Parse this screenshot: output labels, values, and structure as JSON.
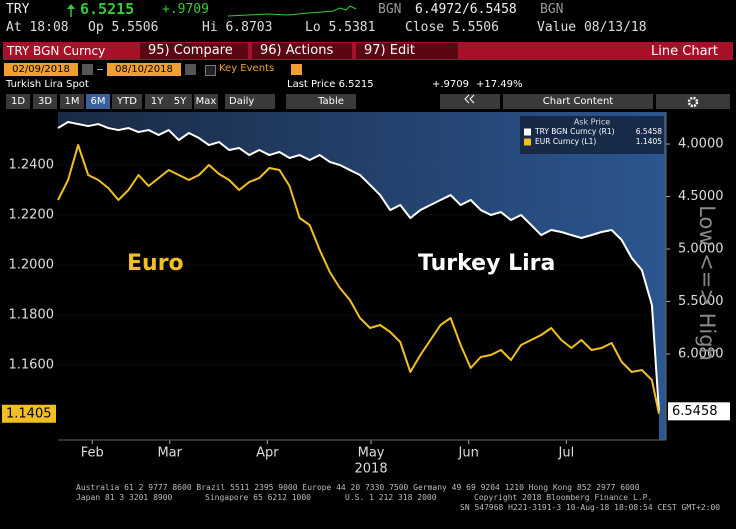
{
  "header": {
    "ticker": "TRY",
    "last": "6.5215",
    "change": "+.9709",
    "currency": "BGN",
    "bid_ask": "6.4972/6.5458",
    "currency2": "BGN"
  },
  "quote": [
    "At 18:08",
    "Op 5.5506",
    "Hi 6.8703",
    "Lo 5.5381",
    "Close 5.5506",
    "Value 08/13/18"
  ],
  "toolbar": {
    "security": "TRY BGN Curncy",
    "buttons": [
      "95) Compare",
      "96) Actions",
      "97) Edit"
    ],
    "view": "Line Chart"
  },
  "dates": {
    "start": "02/09/2018",
    "end": "08/10/2018",
    "key_events": "Key Events"
  },
  "info": {
    "name": "Turkish Lira Spot",
    "last_price": "Last Price 6.5215",
    "change": "+.9709",
    "change_pct": "+17.49%"
  },
  "periods": [
    "1D",
    "3D",
    "1M",
    "6M",
    "YTD",
    "1Y",
    "5Y",
    "Max"
  ],
  "frequency": "Daily",
  "table": "Table",
  "chart_content": "Chart Content",
  "chart_data": {
    "type": "line",
    "x": [
      2.26,
      2.36,
      2.46,
      2.56,
      2.66,
      2.76,
      2.86,
      2.96,
      3.06,
      3.16,
      3.26,
      3.36,
      3.46,
      3.56,
      3.66,
      3.76,
      3.86,
      3.96,
      4.06,
      4.16,
      4.26,
      4.36,
      4.46,
      4.56,
      4.66,
      4.76,
      4.86,
      4.96,
      5.06,
      5.16,
      5.26,
      5.36,
      5.46,
      5.56,
      5.66,
      5.76,
      5.86,
      5.96,
      6.06,
      6.16,
      6.26,
      6.36,
      6.46,
      6.56,
      6.66,
      6.76,
      6.86,
      6.96,
      7.06,
      7.16,
      7.26,
      7.36,
      7.46,
      7.56,
      7.66,
      7.76,
      7.86,
      7.96,
      8.06,
      8.16,
      8.23
    ],
    "xlim": [
      2.26,
      8.3
    ],
    "xticks": [
      {
        "value": 2.6,
        "label": "Feb"
      },
      {
        "value": 3.37,
        "label": "Mar"
      },
      {
        "value": 4.34,
        "label": "Apr"
      },
      {
        "value": 5.37,
        "label": "May"
      },
      {
        "value": 6.34,
        "label": "Jun"
      },
      {
        "value": 7.31,
        "label": "Jul"
      }
    ],
    "xlabel": "2018",
    "ylim": [
      1.13,
      1.2612
    ],
    "yticks": [
      {
        "value": 1.16,
        "label": "1.1600"
      },
      {
        "value": 1.18,
        "label": "1.1800"
      },
      {
        "value": 1.2,
        "label": "1.2000"
      },
      {
        "value": 1.22,
        "label": "1.2200"
      },
      {
        "value": 1.24,
        "label": "1.2400"
      }
    ],
    "y2lim": [
      3.695,
      6.819
    ],
    "y2_inverted": true,
    "y2ticks": [
      {
        "value": 4,
        "label": "4.0000"
      },
      {
        "value": 4.5,
        "label": "4.5000"
      },
      {
        "value": 5,
        "label": "5.0000"
      },
      {
        "value": 5.5,
        "label": "5.5000"
      },
      {
        "value": 6,
        "label": "6.0000"
      }
    ],
    "y2label": "Low <=> High",
    "grid": true,
    "legend_title": "Ask Price",
    "series": [
      {
        "name": "TRY BGN Curncy (R1)",
        "color": "#ffffff",
        "axis": "y2",
        "last_label": "6.5458",
        "values": [
          3.848,
          3.79,
          3.81,
          3.829,
          3.81,
          3.848,
          3.867,
          3.848,
          3.886,
          3.867,
          3.914,
          3.867,
          3.962,
          3.895,
          3.943,
          4.01,
          3.981,
          4.057,
          4.038,
          4.105,
          4.057,
          4.105,
          4.076,
          4.133,
          4.105,
          4.152,
          4.105,
          4.171,
          4.2,
          4.248,
          4.295,
          4.39,
          4.486,
          4.629,
          4.581,
          4.705,
          4.629,
          4.581,
          4.533,
          4.486,
          4.581,
          4.533,
          4.629,
          4.676,
          4.648,
          4.724,
          4.676,
          4.771,
          4.867,
          4.819,
          4.838,
          4.867,
          4.895,
          4.867,
          4.838,
          4.819,
          4.914,
          5.086,
          5.2,
          5.533,
          6.5458
        ]
      },
      {
        "name": "EUR Curncy (L1)",
        "color": "#f0c020",
        "last_label": "1.1405",
        "values": [
          1.226,
          1.234,
          1.248,
          1.236,
          1.234,
          1.2308,
          1.226,
          1.23,
          1.236,
          1.2316,
          1.2348,
          1.238,
          1.236,
          1.234,
          1.236,
          1.24,
          1.2364,
          1.234,
          1.23,
          1.2332,
          1.2348,
          1.2388,
          1.238,
          1.2316,
          1.2188,
          1.216,
          1.206,
          1.1972,
          1.1908,
          1.186,
          1.1788,
          1.1748,
          1.176,
          1.1732,
          1.1692,
          1.1572,
          1.164,
          1.17,
          1.176,
          1.1788,
          1.168,
          1.1588,
          1.1632,
          1.164,
          1.166,
          1.162,
          1.168,
          1.17,
          1.172,
          1.1748,
          1.17,
          1.1668,
          1.17,
          1.166,
          1.1668,
          1.1688,
          1.1612,
          1.1572,
          1.158,
          1.154,
          1.1405
        ]
      }
    ],
    "annotations": [
      {
        "text": "Euro",
        "color": "#f0c020"
      },
      {
        "text": "Turkey Lira",
        "color": "#ffffff"
      }
    ]
  },
  "footer": [
    "Australia 61 2 9777 8600 Brazil 5511 2395 9000 Europe 44 20 7330 7500 Germany 49 69 9204 1210 Hong Kong 852 2977 6000",
    "Japan 81 3 3201 8900",
    "Singapore 65 6212 1000",
    "U.S. 1 212 318 2000",
    "Copyright 2018 Bloomberg Finance L.P.",
    "SN 547968 H221-3191-3 10-Aug-18 18:08:54 CEST GMT+2:00"
  ]
}
